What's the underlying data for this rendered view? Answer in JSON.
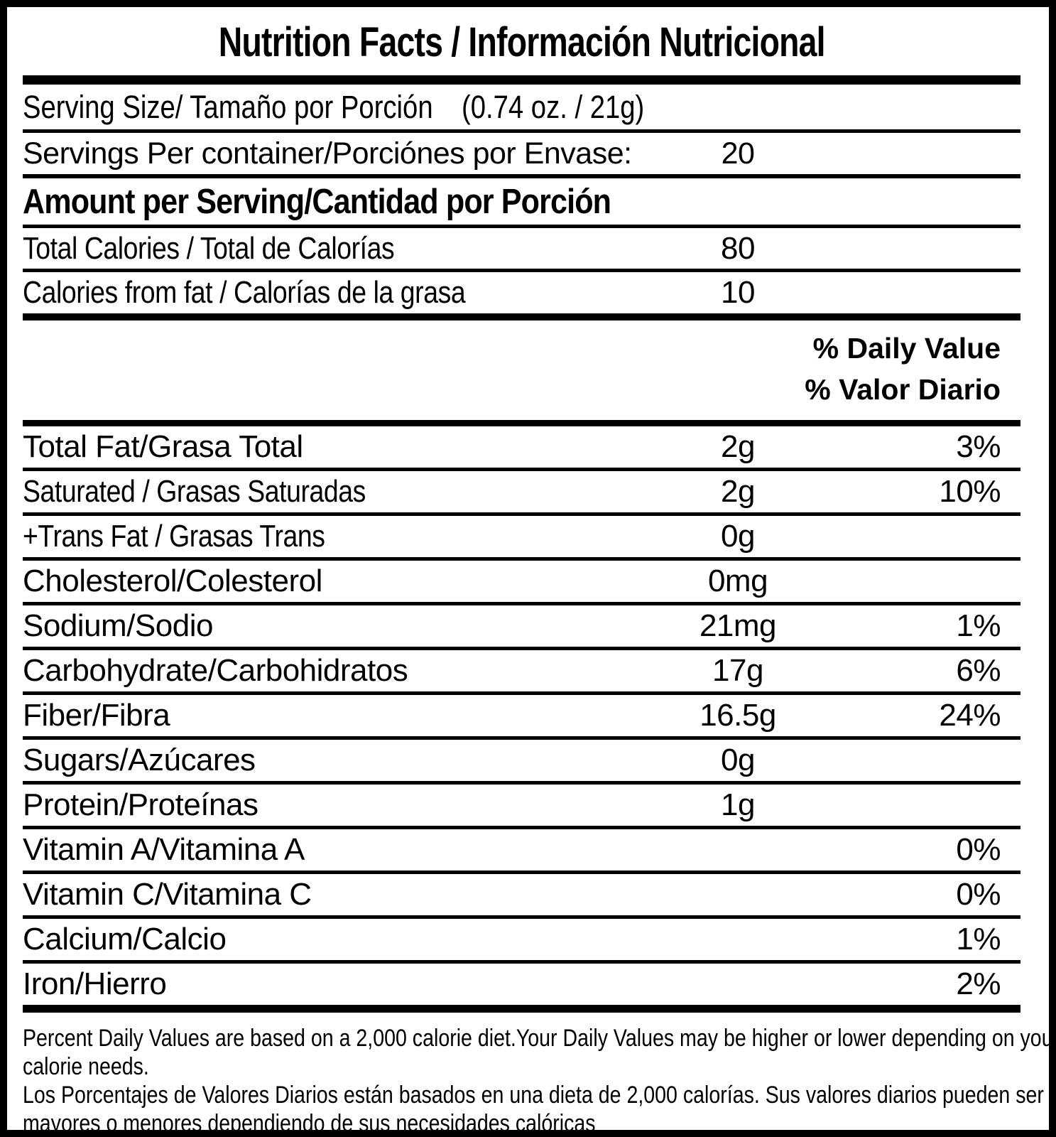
{
  "label": {
    "title": "Nutrition Facts / Información Nutricional",
    "serving_size": {
      "label": "Serving Size/ Tamaño por Porción",
      "value": "(0.74 oz. / 21g)"
    },
    "servings_per_container": {
      "label": "Servings Per container/Porciónes por Envase:",
      "value": "20"
    },
    "amount_header": "Amount per Serving/Cantidad por Porción",
    "calorie_rows": [
      {
        "label": "Total Calories / Total de Calorías",
        "value": "80"
      },
      {
        "label": "Calories from fat / Calorías de la grasa",
        "value": "10"
      }
    ],
    "daily_value_header_en": "% Daily Value",
    "daily_value_header_es": "% Valor Diario",
    "nutrients": [
      {
        "label": "Total Fat/Grasa Total",
        "amount": "2g",
        "dv": "3%"
      },
      {
        "label": "Saturated / Grasas Saturadas",
        "amount": "2g",
        "dv": "10%"
      },
      {
        "label": "+Trans Fat / Grasas Trans",
        "amount": "0g",
        "dv": ""
      },
      {
        "label": "Cholesterol/Colesterol",
        "amount": "0mg",
        "dv": ""
      },
      {
        "label": "Sodium/Sodio",
        "amount": "21mg",
        "dv": "1%"
      },
      {
        "label": "Carbohydrate/Carbohidratos",
        "amount": "17g",
        "dv": "6%"
      },
      {
        "label": "Fiber/Fibra",
        "amount": "16.5g",
        "dv": "24%"
      },
      {
        "label": "Sugars/Azúcares",
        "amount": "0g",
        "dv": ""
      },
      {
        "label": "Protein/Proteínas",
        "amount": "1g",
        "dv": ""
      },
      {
        "label": "Vitamin A/Vitamina A",
        "amount": "",
        "dv": "0%"
      },
      {
        "label": "Vitamin C/Vitamina C",
        "amount": "",
        "dv": "0%"
      },
      {
        "label": "Calcium/Calcio",
        "amount": "",
        "dv": "1%"
      },
      {
        "label": "Iron/Hierro",
        "amount": "",
        "dv": "2%"
      }
    ],
    "footnote": {
      "lines_en": [
        "Percent Daily Values are based on a 2,000 calorie diet.Your Daily Values may be higher or lower depending on your",
        "calorie needs."
      ],
      "lines_es": [
        "Los Porcentajes de Valores Diarios están basados en una dieta de 2,000 calorías. Sus valores diarios pueden ser",
        "mayores o menores dependiendo de sus necesidades calóricas"
      ]
    },
    "colors": {
      "text": "#000000",
      "background": "#ffffff",
      "rule": "#000000"
    }
  }
}
